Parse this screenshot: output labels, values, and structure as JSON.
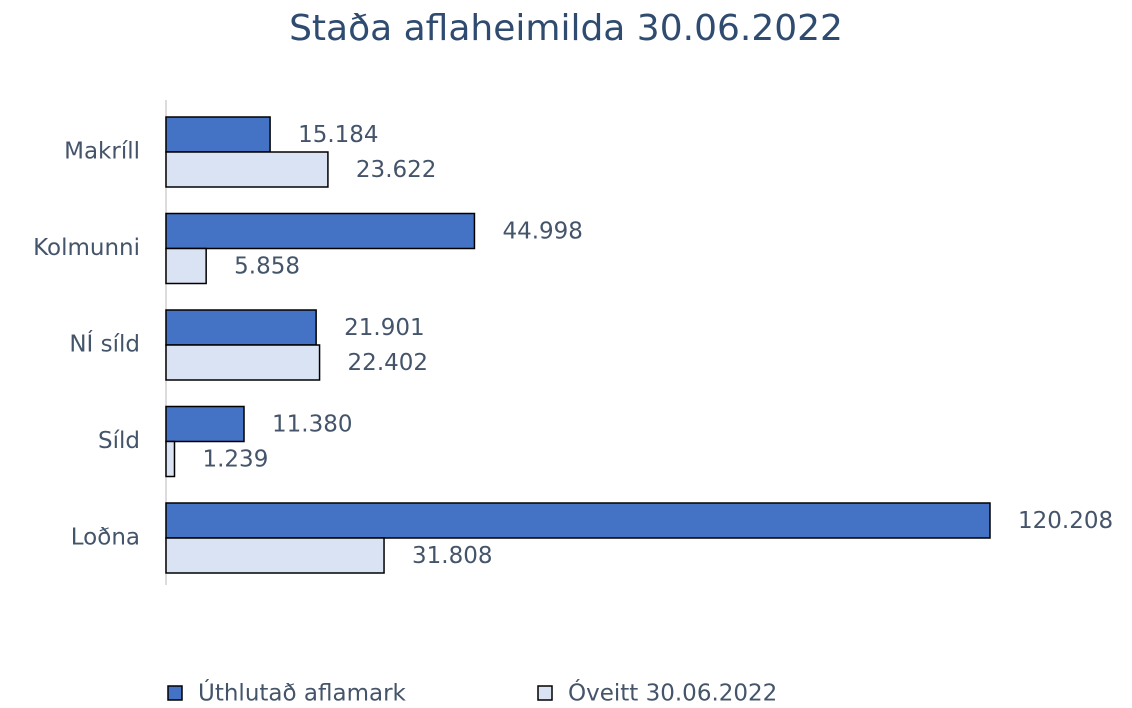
{
  "chart_data": {
    "type": "bar",
    "orientation": "horizontal",
    "title": "Staða aflaheimilda 30.06.2022",
    "categories": [
      "Makríll",
      "Kolmunni",
      "NÍ síld",
      "Síld",
      "Loðna"
    ],
    "series": [
      {
        "name": "Úthlutað aflamark",
        "color": "#4472c4",
        "values": [
          15184,
          44998,
          21901,
          11380,
          120208
        ],
        "value_labels": [
          "15.184",
          "44.998",
          "21.901",
          "11.380",
          "120.208"
        ]
      },
      {
        "name": "Óveitt 30.06.2022",
        "color": "#dae3f3",
        "values": [
          23622,
          5858,
          22402,
          1239,
          31808
        ],
        "value_labels": [
          "23.622",
          "5.858",
          "22.402",
          "1.239",
          "31.808"
        ]
      }
    ],
    "legend": "bottom"
  }
}
